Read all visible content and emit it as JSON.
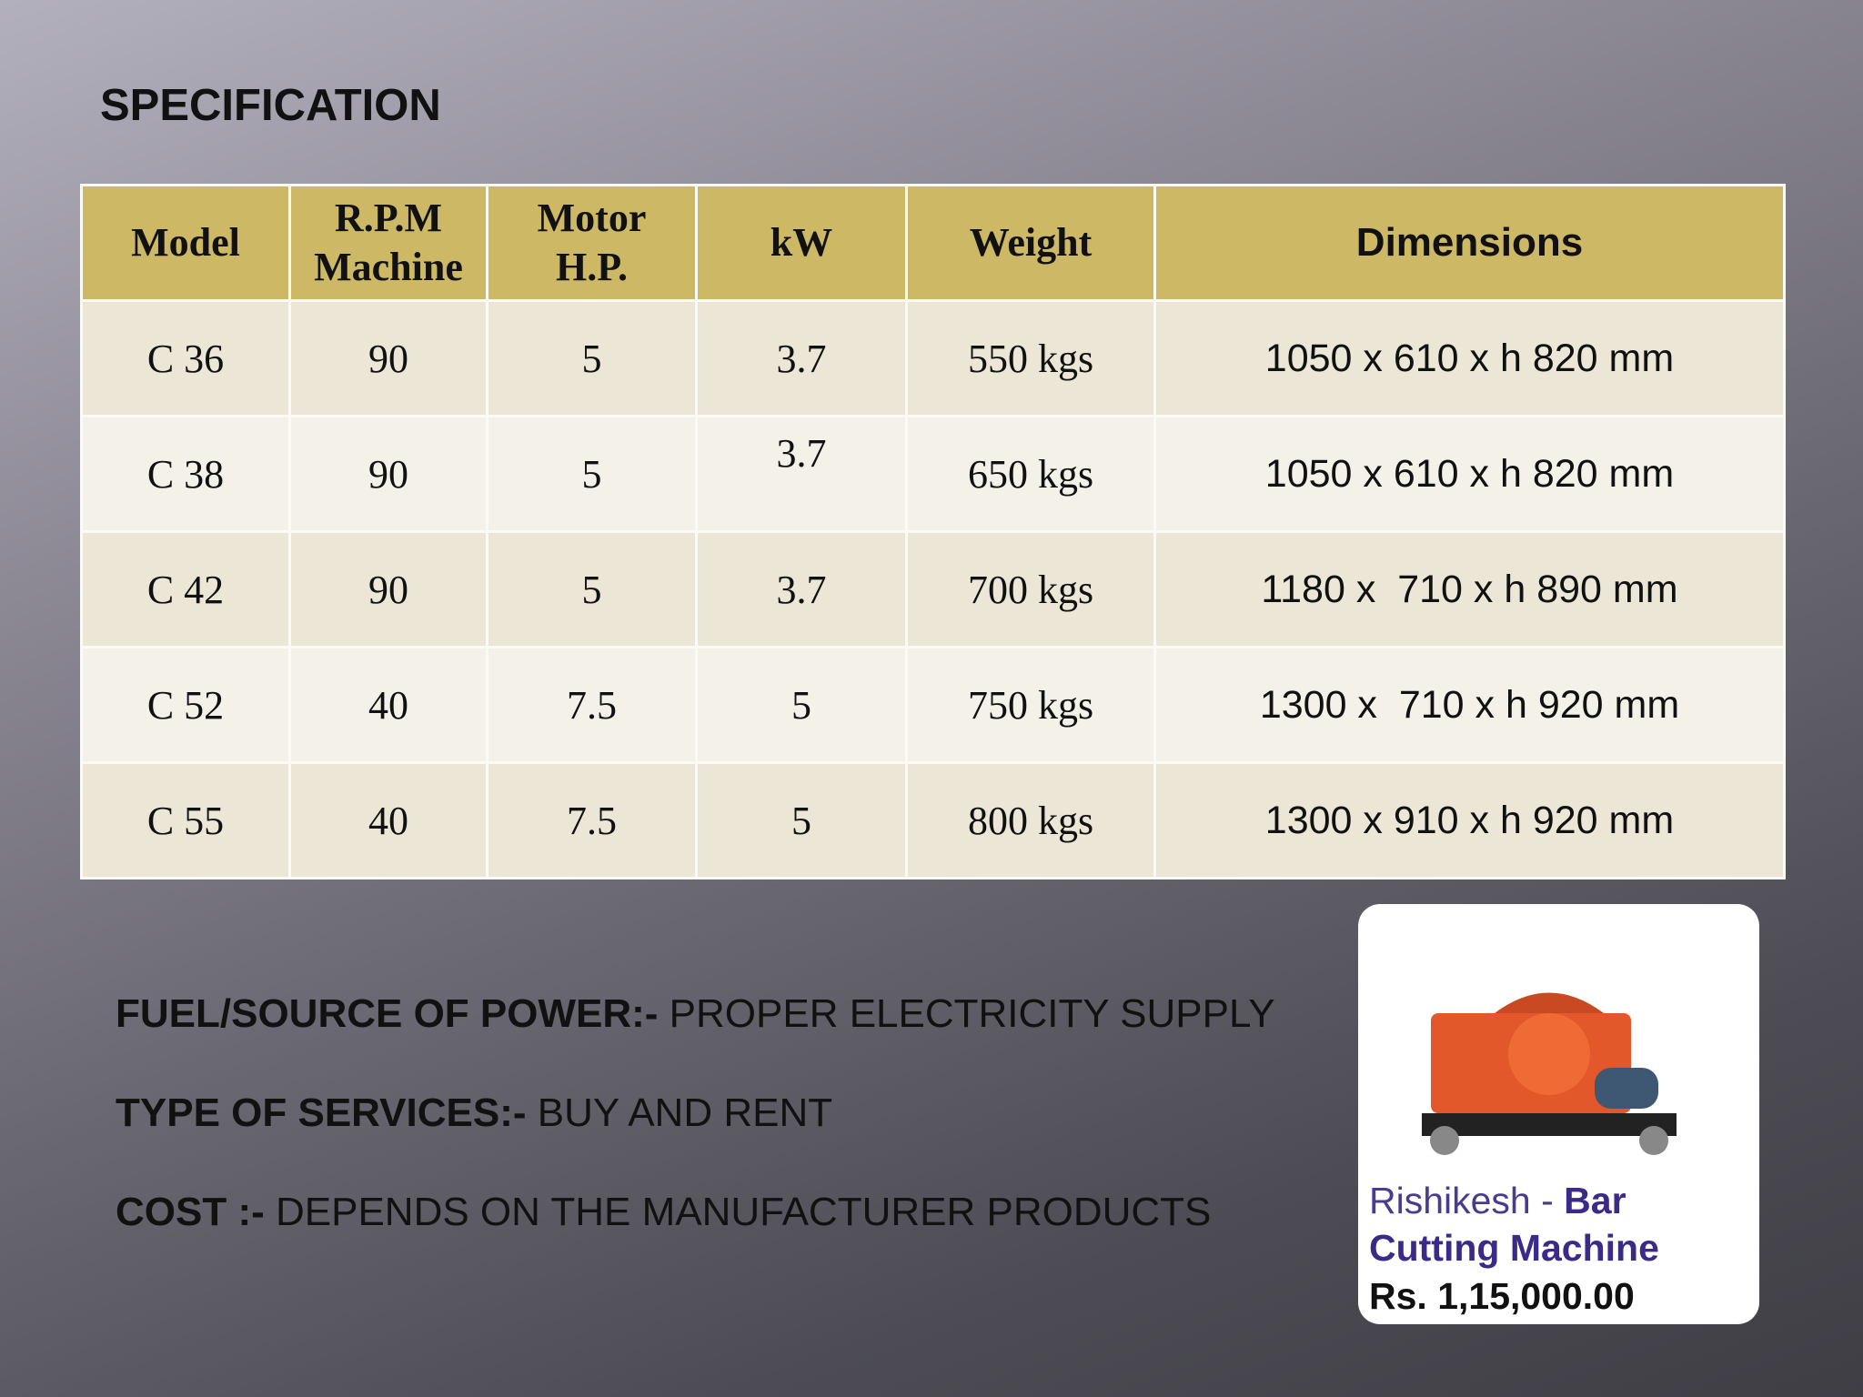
{
  "header": {
    "title": "SPECIFICATION"
  },
  "table": {
    "columns": [
      "Model",
      "R.P.M\nMachine",
      "Motor\nH.P.",
      "kW",
      "Weight",
      "Dimensions"
    ],
    "rows": [
      [
        "C 36",
        "90",
        "5",
        "3.7",
        "550 kgs",
        "1050 x 610 x h 820 mm"
      ],
      [
        "C 38",
        "90",
        "5",
        "3.7",
        "650 kgs",
        "1050 x 610 x h 820 mm"
      ],
      [
        "C 42",
        "90",
        "5",
        "3.7",
        "700 kgs",
        "1180 x  710 x h 890 mm"
      ],
      [
        "C 52",
        "40",
        "7.5",
        "5",
        "750 kgs",
        "1300 x  710 x h 920 mm"
      ],
      [
        "C 55",
        "40",
        "7.5",
        "5",
        "800 kgs",
        "1300 x 910 x h 920 mm"
      ]
    ]
  },
  "info": [
    {
      "label": "FUEL/SOURCE OF POWER:-",
      "value": " PROPER ELECTRICITY SUPPLY"
    },
    {
      "label": "TYPE OF SERVICES:-",
      "value": " BUY AND RENT"
    },
    {
      "label": "COST :-",
      "value": " DEPENDS ON THE MANUFACTURER PRODUCTS"
    }
  ],
  "card": {
    "seller": "Rishikesh - ",
    "product": "Bar Cutting Machine",
    "price": "Rs. 1,15,000.00"
  }
}
